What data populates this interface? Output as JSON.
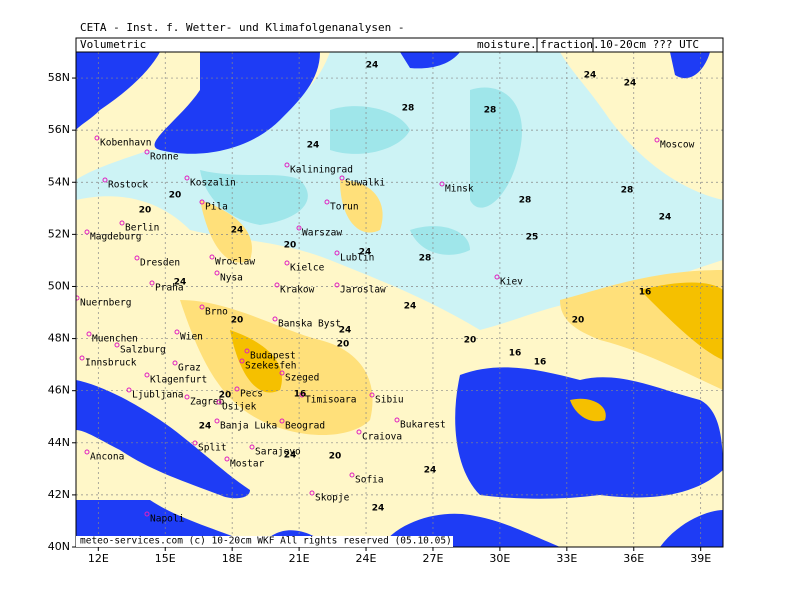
{
  "header": {
    "title": "CETA - Inst. f. Wetter- und Klimafolgenanalysen -",
    "left_label": "Volumetric",
    "right_label": [
      "moisture.",
      "fraction",
      ".10-20cm ??? UTC"
    ]
  },
  "map": {
    "lon_range": [
      11,
      40
    ],
    "lat_range": [
      40,
      59
    ],
    "lat_ticks": [
      {
        "value": 58,
        "label": "58N"
      },
      {
        "value": 56,
        "label": "56N"
      },
      {
        "value": 54,
        "label": "54N"
      },
      {
        "value": 52,
        "label": "52N"
      },
      {
        "value": 50,
        "label": "50N"
      },
      {
        "value": 48,
        "label": "48N"
      },
      {
        "value": 46,
        "label": "46N"
      },
      {
        "value": 44,
        "label": "44N"
      },
      {
        "value": 42,
        "label": "42N"
      },
      {
        "value": 40,
        "label": "40N"
      }
    ],
    "lon_ticks": [
      {
        "value": 12,
        "label": "12E"
      },
      {
        "value": 15,
        "label": "15E"
      },
      {
        "value": 18,
        "label": "18E"
      },
      {
        "value": 21,
        "label": "21E"
      },
      {
        "value": 24,
        "label": "24E"
      },
      {
        "value": 27,
        "label": "27E"
      },
      {
        "value": 30,
        "label": "30E"
      },
      {
        "value": 33,
        "label": "33E"
      },
      {
        "value": 36,
        "label": "36E"
      },
      {
        "value": 39,
        "label": "39E"
      }
    ],
    "cities": [
      "Kobenhavn",
      "Ronne",
      "Rostock",
      "Koszalin",
      "Kaliningrad",
      "Suwalki",
      "Berlin",
      "Pila",
      "Torun",
      "Magdeburg",
      "Warszaw",
      "Lublin",
      "Dresden",
      "Wroclaw",
      "Kielce",
      "Nysa",
      "Praha",
      "Krakow",
      "Jaroslaw",
      "Nuernberg",
      "Brno",
      "Banska Byst",
      "Wien",
      "Muenchen",
      "Salzburg",
      "Innsbruck",
      "Budapest",
      "Szekesfeh",
      "Graz",
      "Klagenfurt",
      "Szeged",
      "Ljubljana",
      "Zagreb",
      "Pecs",
      "Osijek",
      "Timisoara",
      "Sibiu",
      "Banja Luka",
      "Beograd",
      "Bukarest",
      "Craiova",
      "Split",
      "Sarajevo",
      "Ancona",
      "Mostar",
      "Sofia",
      "Skopje",
      "Napoli",
      "Minsk",
      "Kiev",
      "Moscow"
    ],
    "contour_labels": [
      "24",
      "24",
      "24",
      "28",
      "28",
      "24",
      "20",
      "20",
      "24",
      "20",
      "28",
      "24",
      "24",
      "28",
      "25",
      "28",
      "24",
      "24",
      "20",
      "16",
      "20",
      "16",
      "16",
      "20",
      "20",
      "24",
      "24",
      "16",
      "20",
      "24",
      "20",
      "24",
      "24"
    ]
  },
  "footer": "meteo-services.com (c) 10-20cm WKF All rights reserved (05.10.05)"
}
